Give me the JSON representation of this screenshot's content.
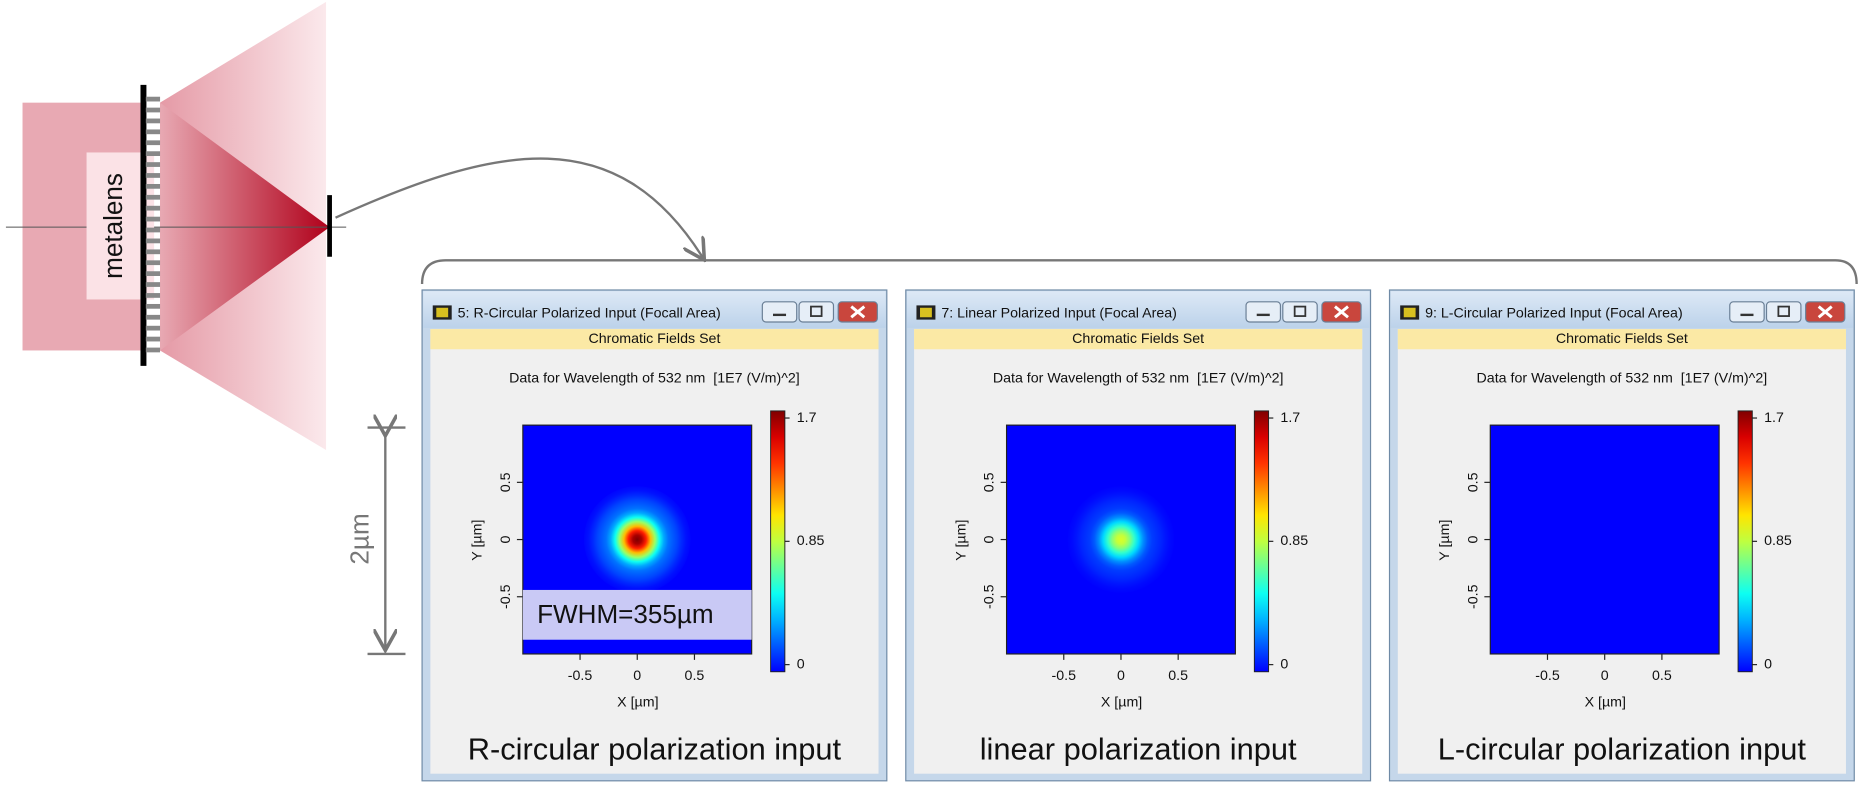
{
  "diagram": {
    "lens_label": "metalens",
    "scale_label": "2µm"
  },
  "windows": [
    {
      "title": "5: R-Circular Polarized Input (Focall Area)",
      "toolbar": "Chromatic Fields Set",
      "header": "Data for Wavelength of 532 nm  [1E7 (V/m)^2]",
      "xlabel": "X [µm]",
      "ylabel": "Y [µm]",
      "xlim": [
        -1,
        1
      ],
      "xticks": [
        -0.5,
        0,
        0.5
      ],
      "ylim": [
        -1,
        1
      ],
      "yticks": [
        -0.5,
        0,
        0.5
      ],
      "clim": [
        0,
        1.7
      ],
      "cticks": [
        0,
        0.85,
        1.7
      ],
      "peak": 1.7,
      "annotation": "FWHM=355µm",
      "caption": "R-circular polarization input"
    },
    {
      "title": "7: Linear Polarized Input (Focal Area)",
      "toolbar": "Chromatic Fields Set",
      "header": "Data for Wavelength of 532 nm  [1E7 (V/m)^2]",
      "xlabel": "X [µm]",
      "ylabel": "Y [µm]",
      "xlim": [
        -1,
        1
      ],
      "xticks": [
        -0.5,
        0,
        0.5
      ],
      "ylim": [
        -1,
        1
      ],
      "yticks": [
        -0.5,
        0,
        0.5
      ],
      "clim": [
        0,
        1.7
      ],
      "cticks": [
        0,
        0.85,
        1.7
      ],
      "peak": 0.9,
      "caption": "linear polarization input"
    },
    {
      "title": "9: L-Circular Polarized Input (Focal Area)",
      "toolbar": "Chromatic Fields Set",
      "header": "Data for Wavelength of 532 nm  [1E7 (V/m)^2]",
      "xlabel": "X [µm]",
      "ylabel": "Y [µm]",
      "xlim": [
        -1,
        1
      ],
      "xticks": [
        -0.5,
        0,
        0.5
      ],
      "ylim": [
        -1,
        1
      ],
      "yticks": [
        -0.5,
        0,
        0.5
      ],
      "clim": [
        0,
        1.7
      ],
      "cticks": [
        0,
        0.85,
        1.7
      ],
      "peak": 0,
      "caption": "L-circular polarization input"
    }
  ]
}
